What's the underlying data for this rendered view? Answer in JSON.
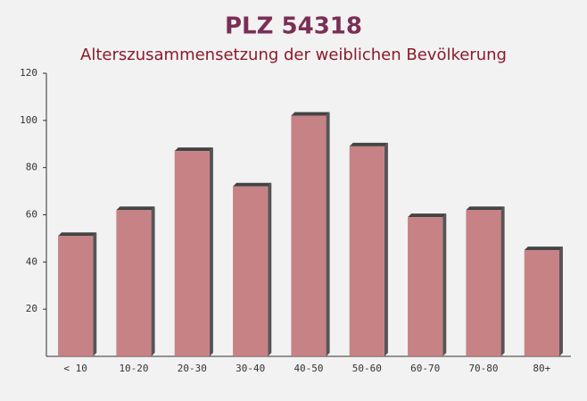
{
  "chart_data": {
    "type": "bar",
    "title": "PLZ 54318",
    "subtitle": "Alterszusammensetzung der weiblichen Bevölkerung",
    "categories": [
      "< 10",
      "10-20",
      "20-30",
      "30-40",
      "40-50",
      "50-60",
      "60-70",
      "70-80",
      "80+"
    ],
    "values": [
      51,
      62,
      87,
      72,
      102,
      89,
      59,
      62,
      45
    ],
    "color": "#c27579",
    "ylim": [
      0,
      120
    ],
    "yticks": [
      20,
      40,
      60,
      80,
      100,
      120
    ]
  }
}
